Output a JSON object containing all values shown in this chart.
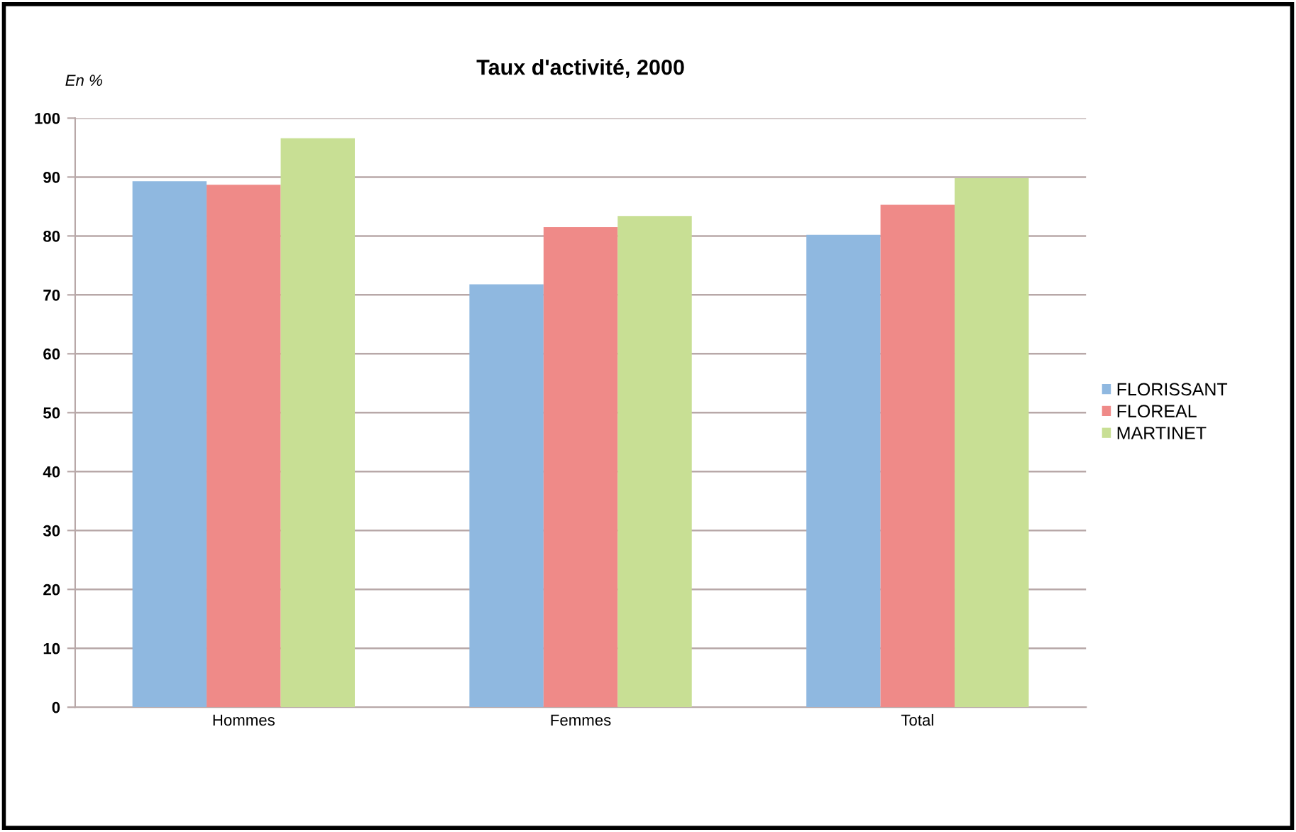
{
  "chart_data": {
    "type": "bar",
    "title": "Taux d'activité, 2000",
    "ylabel": "En %",
    "categories": [
      "Hommes",
      "Femmes",
      "Total"
    ],
    "series": [
      {
        "name": "FLORISSANT",
        "color": "#8fb8e0",
        "values": [
          89.3,
          71.8,
          80.2
        ]
      },
      {
        "name": "FLOREAL",
        "color": "#ef8a88",
        "values": [
          88.7,
          81.5,
          85.3
        ]
      },
      {
        "name": "MARTINET",
        "color": "#c8df94",
        "values": [
          96.6,
          83.4,
          89.8
        ]
      }
    ],
    "ylim": [
      0,
      100
    ],
    "yticks": [
      0,
      10,
      20,
      30,
      40,
      50,
      60,
      70,
      80,
      90,
      100
    ],
    "grid": "y",
    "legend": "right"
  }
}
